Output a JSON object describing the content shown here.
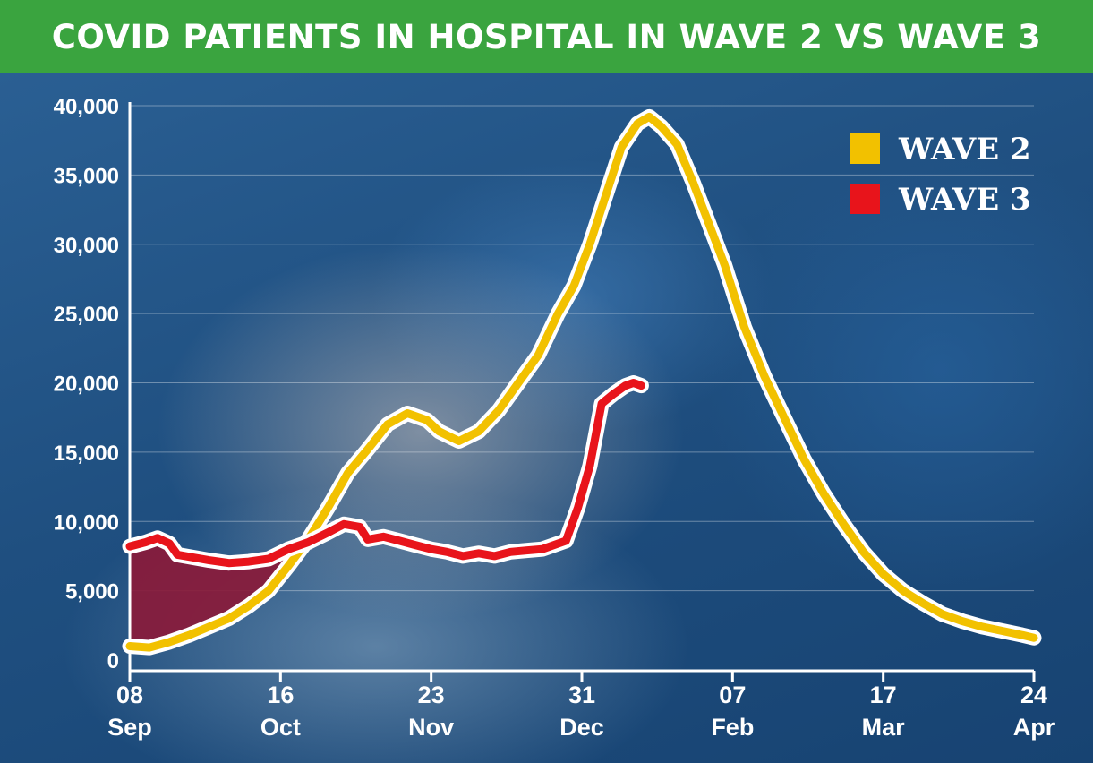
{
  "header": {
    "title": "COVID PATIENTS IN HOSPITAL IN WAVE 2 VS WAVE 3"
  },
  "colors": {
    "banner": "#3aa43f",
    "wave2": "#f2c100",
    "wave3": "#e8141b",
    "fill_under": "#8a1a3a",
    "outline": "#ffffff"
  },
  "chart_data": {
    "type": "line",
    "title": "COVID PATIENTS IN HOSPITAL IN WAVE 2 VS WAVE 3",
    "xlabel": "",
    "ylabel": "",
    "ylim": [
      0,
      40000
    ],
    "xlim": [
      0,
      228
    ],
    "y_ticks": [
      0,
      5000,
      10000,
      15000,
      20000,
      25000,
      30000,
      35000,
      40000
    ],
    "y_tick_labels": [
      "0",
      "5,000",
      "10,000",
      "15,000",
      "20,000",
      "25,000",
      "30,000",
      "35,000",
      "40,000"
    ],
    "x_ticks": [
      0,
      38,
      76,
      114,
      152,
      190,
      228
    ],
    "x_tick_labels": [
      [
        "08",
        "Sep"
      ],
      [
        "16",
        "Oct"
      ],
      [
        "23",
        "Nov"
      ],
      [
        "31",
        "Dec"
      ],
      [
        "07",
        "Feb"
      ],
      [
        "17",
        "Mar"
      ],
      [
        "24",
        "Apr"
      ]
    ],
    "x_units": "days from 08 Sep",
    "grid": "horizontal",
    "legend_position": "top-right",
    "series": [
      {
        "name": "WAVE 2",
        "color": "#f2c100",
        "points": [
          [
            0,
            1000
          ],
          [
            5,
            900
          ],
          [
            10,
            1300
          ],
          [
            15,
            1800
          ],
          [
            20,
            2400
          ],
          [
            25,
            3000
          ],
          [
            30,
            3900
          ],
          [
            35,
            5000
          ],
          [
            40,
            6800
          ],
          [
            45,
            8700
          ],
          [
            50,
            11000
          ],
          [
            55,
            13500
          ],
          [
            60,
            15200
          ],
          [
            65,
            17000
          ],
          [
            70,
            17800
          ],
          [
            75,
            17300
          ],
          [
            78,
            16500
          ],
          [
            83,
            15800
          ],
          [
            88,
            16500
          ],
          [
            93,
            18000
          ],
          [
            98,
            20000
          ],
          [
            103,
            22000
          ],
          [
            108,
            25000
          ],
          [
            112,
            27000
          ],
          [
            116,
            30000
          ],
          [
            120,
            33500
          ],
          [
            124,
            37000
          ],
          [
            128,
            38700
          ],
          [
            131,
            39200
          ],
          [
            134,
            38500
          ],
          [
            138,
            37200
          ],
          [
            142,
            34500
          ],
          [
            146,
            31500
          ],
          [
            150,
            28500
          ],
          [
            155,
            24000
          ],
          [
            160,
            20500
          ],
          [
            165,
            17500
          ],
          [
            170,
            14500
          ],
          [
            175,
            12000
          ],
          [
            180,
            9800
          ],
          [
            185,
            7800
          ],
          [
            190,
            6200
          ],
          [
            195,
            5000
          ],
          [
            200,
            4100
          ],
          [
            205,
            3300
          ],
          [
            210,
            2800
          ],
          [
            215,
            2400
          ],
          [
            220,
            2100
          ],
          [
            225,
            1800
          ],
          [
            228,
            1600
          ]
        ]
      },
      {
        "name": "WAVE 3",
        "color": "#e8141b",
        "points": [
          [
            0,
            8200
          ],
          [
            4,
            8500
          ],
          [
            7,
            8800
          ],
          [
            10,
            8400
          ],
          [
            12,
            7600
          ],
          [
            16,
            7400
          ],
          [
            20,
            7200
          ],
          [
            25,
            7000
          ],
          [
            30,
            7100
          ],
          [
            35,
            7300
          ],
          [
            40,
            8000
          ],
          [
            45,
            8500
          ],
          [
            50,
            9200
          ],
          [
            54,
            9800
          ],
          [
            58,
            9600
          ],
          [
            60,
            8700
          ],
          [
            64,
            8900
          ],
          [
            68,
            8600
          ],
          [
            72,
            8300
          ],
          [
            76,
            8000
          ],
          [
            80,
            7800
          ],
          [
            84,
            7500
          ],
          [
            88,
            7700
          ],
          [
            92,
            7500
          ],
          [
            96,
            7800
          ],
          [
            100,
            7900
          ],
          [
            104,
            8000
          ],
          [
            108,
            8400
          ],
          [
            110,
            8600
          ],
          [
            113,
            11000
          ],
          [
            116,
            14000
          ],
          [
            119,
            18500
          ],
          [
            122,
            19200
          ],
          [
            125,
            19800
          ],
          [
            127,
            20000
          ],
          [
            129,
            19800
          ]
        ]
      }
    ]
  }
}
